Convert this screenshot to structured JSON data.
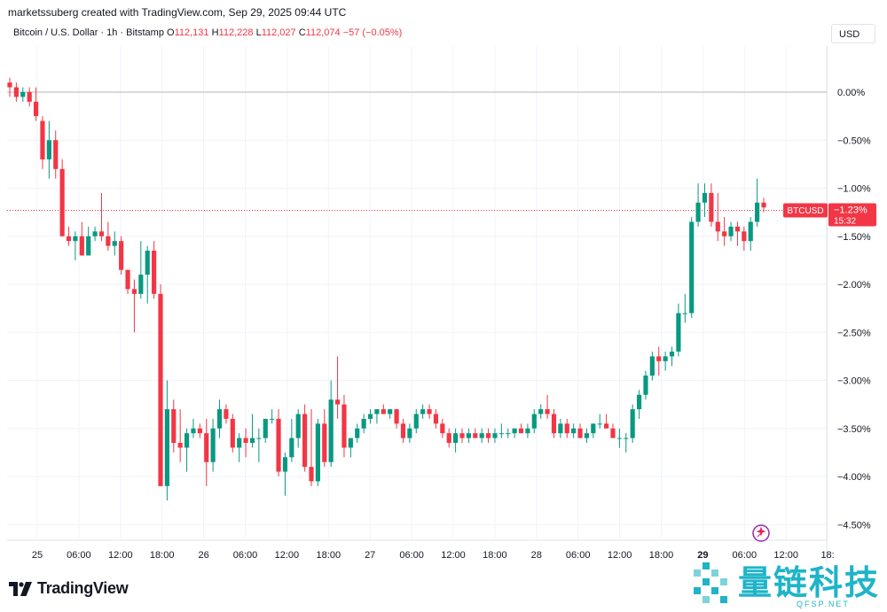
{
  "header": {
    "credit": "marketssuberg created with TradingView.com, Sep 29, 2025 09:44 UTC",
    "symbol": "Bitcoin / U.S. Dollar · 1h · Bitstamp",
    "open_label": "O",
    "open": "112,131",
    "high_label": "H",
    "high": "112,228",
    "low_label": "L",
    "low": "112,027",
    "close_label": "C",
    "close": "112,074",
    "change": "−57 (−0.05%)"
  },
  "currency_button": "USD",
  "price_tag": {
    "symbol": "BTCUSD",
    "value": "−1.23%",
    "countdown": "15:32"
  },
  "branding": {
    "logo_text": "TradingView"
  },
  "watermark": {
    "cn": "量链科技",
    "en": "QFSP.NET"
  },
  "colors": {
    "up": "#089981",
    "down": "#f23645",
    "grid": "#f0f3fa",
    "text": "#131722",
    "watermark": "#1fb4c8"
  },
  "icons": {
    "logo": "tradingview-logo-icon",
    "snapshot": "sparkle-icon"
  },
  "chart_data": {
    "type": "candlestick",
    "y_unit": "%",
    "ylim": [
      -4.6,
      0.2
    ],
    "yticks": [
      "0.00%",
      "−0.50%",
      "−1.00%",
      "−1.50%",
      "−2.00%",
      "−2.50%",
      "−3.00%",
      "−3.50%",
      "−4.00%",
      "−4.50%"
    ],
    "xticks": [
      "25",
      "06:00",
      "12:00",
      "18:00",
      "26",
      "06:00",
      "12:00",
      "18:00",
      "27",
      "06:00",
      "12:00",
      "18:00",
      "28",
      "06:00",
      "12:00",
      "18:00",
      "29",
      "06:00",
      "12:00",
      "18:"
    ],
    "baseline": 0.0,
    "last_value": -1.23,
    "grid": true,
    "candles": [
      [
        0.1,
        0.15,
        -0.05,
        0.05
      ],
      [
        0.05,
        0.1,
        -0.1,
        -0.05
      ],
      [
        -0.05,
        0.05,
        -0.1,
        0
      ],
      [
        0,
        0.05,
        -0.15,
        -0.1
      ],
      [
        -0.1,
        0.05,
        -0.3,
        -0.25
      ],
      [
        -0.3,
        -0.25,
        -0.8,
        -0.7
      ],
      [
        -0.7,
        -0.3,
        -0.9,
        -0.5
      ],
      [
        -0.5,
        -0.4,
        -0.9,
        -0.8
      ],
      [
        -0.8,
        -0.7,
        -1.5,
        -1.5
      ],
      [
        -1.5,
        -1.4,
        -1.6,
        -1.55
      ],
      [
        -1.55,
        -1.45,
        -1.75,
        -1.5
      ],
      [
        -1.5,
        -1.35,
        -1.7,
        -1.7
      ],
      [
        -1.7,
        -1.4,
        -1.7,
        -1.5
      ],
      [
        -1.5,
        -1.4,
        -1.55,
        -1.45
      ],
      [
        -1.45,
        -1.05,
        -1.55,
        -1.5
      ],
      [
        -1.5,
        -1.35,
        -1.65,
        -1.6
      ],
      [
        -1.6,
        -1.45,
        -1.7,
        -1.55
      ],
      [
        -1.55,
        -1.5,
        -1.9,
        -1.85
      ],
      [
        -1.85,
        -1.85,
        -2.1,
        -2.05
      ],
      [
        -2.05,
        -1.95,
        -2.5,
        -2.1
      ],
      [
        -2.1,
        -1.55,
        -2.15,
        -1.9
      ],
      [
        -1.9,
        -1.6,
        -2.2,
        -1.65
      ],
      [
        -1.65,
        -1.55,
        -2.15,
        -2.1
      ],
      [
        -2.1,
        -2.0,
        -4.1,
        -4.1
      ],
      [
        -4.1,
        -3.0,
        -4.25,
        -3.3
      ],
      [
        -3.3,
        -3.2,
        -3.75,
        -3.65
      ],
      [
        -3.65,
        -3.3,
        -3.85,
        -3.7
      ],
      [
        -3.7,
        -3.5,
        -3.95,
        -3.55
      ],
      [
        -3.55,
        -3.4,
        -3.6,
        -3.5
      ],
      [
        -3.5,
        -3.45,
        -3.6,
        -3.55
      ],
      [
        -3.55,
        -3.4,
        -4.1,
        -3.85
      ],
      [
        -3.85,
        -3.4,
        -3.95,
        -3.5
      ],
      [
        -3.5,
        -3.2,
        -3.6,
        -3.3
      ],
      [
        -3.3,
        -3.25,
        -3.45,
        -3.4
      ],
      [
        -3.4,
        -3.35,
        -3.75,
        -3.7
      ],
      [
        -3.7,
        -3.55,
        -3.85,
        -3.6
      ],
      [
        -3.6,
        -3.5,
        -3.8,
        -3.65
      ],
      [
        -3.65,
        -3.35,
        -3.7,
        -3.6
      ],
      [
        -3.6,
        -3.5,
        -3.85,
        -3.6
      ],
      [
        -3.6,
        -3.4,
        -3.65,
        -3.4
      ],
      [
        -3.4,
        -3.3,
        -3.45,
        -3.4
      ],
      [
        -3.4,
        -3.3,
        -4.0,
        -3.95
      ],
      [
        -3.95,
        -3.75,
        -4.2,
        -3.8
      ],
      [
        -3.8,
        -3.4,
        -3.85,
        -3.6
      ],
      [
        -3.6,
        -3.3,
        -3.7,
        -3.35
      ],
      [
        -3.35,
        -3.25,
        -3.95,
        -3.9
      ],
      [
        -3.9,
        -3.3,
        -4.1,
        -4.05
      ],
      [
        -4.05,
        -3.4,
        -4.1,
        -3.45
      ],
      [
        -3.45,
        -3.3,
        -3.9,
        -3.85
      ],
      [
        -3.85,
        -3.0,
        -3.9,
        -3.2
      ],
      [
        -3.2,
        -2.75,
        -3.4,
        -3.25
      ],
      [
        -3.25,
        -3.15,
        -3.8,
        -3.7
      ],
      [
        -3.7,
        -3.6,
        -3.8,
        -3.6
      ],
      [
        -3.6,
        -3.45,
        -3.65,
        -3.5
      ],
      [
        -3.5,
        -3.35,
        -3.55,
        -3.4
      ],
      [
        -3.4,
        -3.3,
        -3.45,
        -3.35
      ],
      [
        -3.35,
        -3.3,
        -3.45,
        -3.3
      ],
      [
        -3.3,
        -3.25,
        -3.35,
        -3.35
      ],
      [
        -3.35,
        -3.3,
        -3.4,
        -3.3
      ],
      [
        -3.3,
        -3.3,
        -3.5,
        -3.45
      ],
      [
        -3.45,
        -3.4,
        -3.65,
        -3.6
      ],
      [
        -3.6,
        -3.45,
        -3.65,
        -3.5
      ],
      [
        -3.5,
        -3.3,
        -3.55,
        -3.35
      ],
      [
        -3.35,
        -3.25,
        -3.4,
        -3.3
      ],
      [
        -3.3,
        -3.25,
        -3.4,
        -3.35
      ],
      [
        -3.35,
        -3.3,
        -3.5,
        -3.45
      ],
      [
        -3.45,
        -3.4,
        -3.6,
        -3.55
      ],
      [
        -3.55,
        -3.5,
        -3.7,
        -3.65
      ],
      [
        -3.65,
        -3.5,
        -3.75,
        -3.55
      ],
      [
        -3.55,
        -3.5,
        -3.65,
        -3.6
      ],
      [
        -3.6,
        -3.5,
        -3.65,
        -3.55
      ],
      [
        -3.55,
        -3.5,
        -3.6,
        -3.6
      ],
      [
        -3.6,
        -3.5,
        -3.65,
        -3.55
      ],
      [
        -3.55,
        -3.5,
        -3.65,
        -3.6
      ],
      [
        -3.6,
        -3.5,
        -3.65,
        -3.55
      ],
      [
        -3.55,
        -3.45,
        -3.6,
        -3.55
      ],
      [
        -3.55,
        -3.5,
        -3.6,
        -3.55
      ],
      [
        -3.55,
        -3.5,
        -3.6,
        -3.5
      ],
      [
        -3.5,
        -3.45,
        -3.55,
        -3.55
      ],
      [
        -3.55,
        -3.45,
        -3.6,
        -3.5
      ],
      [
        -3.5,
        -3.3,
        -3.55,
        -3.35
      ],
      [
        -3.35,
        -3.25,
        -3.4,
        -3.3
      ],
      [
        -3.3,
        -3.15,
        -3.4,
        -3.35
      ],
      [
        -3.35,
        -3.3,
        -3.6,
        -3.55
      ],
      [
        -3.55,
        -3.4,
        -3.6,
        -3.45
      ],
      [
        -3.45,
        -3.4,
        -3.6,
        -3.55
      ],
      [
        -3.55,
        -3.45,
        -3.6,
        -3.5
      ],
      [
        -3.5,
        -3.45,
        -3.6,
        -3.6
      ],
      [
        -3.6,
        -3.5,
        -3.65,
        -3.55
      ],
      [
        -3.55,
        -3.45,
        -3.6,
        -3.45
      ],
      [
        -3.45,
        -3.35,
        -3.5,
        -3.45
      ],
      [
        -3.45,
        -3.35,
        -3.5,
        -3.5
      ],
      [
        -3.5,
        -3.45,
        -3.6,
        -3.6
      ],
      [
        -3.6,
        -3.5,
        -3.7,
        -3.6
      ],
      [
        -3.6,
        -3.55,
        -3.75,
        -3.6
      ],
      [
        -3.6,
        -3.25,
        -3.65,
        -3.3
      ],
      [
        -3.3,
        -3.1,
        -3.4,
        -3.15
      ],
      [
        -3.15,
        -2.9,
        -3.2,
        -2.95
      ],
      [
        -2.95,
        -2.7,
        -3.0,
        -2.75
      ],
      [
        -2.75,
        -2.65,
        -2.95,
        -2.8
      ],
      [
        -2.8,
        -2.7,
        -2.9,
        -2.75
      ],
      [
        -2.75,
        -2.65,
        -2.85,
        -2.7
      ],
      [
        -2.7,
        -2.2,
        -2.75,
        -2.3
      ],
      [
        -2.3,
        -2.1,
        -2.4,
        -2.3
      ],
      [
        -2.3,
        -1.3,
        -2.35,
        -1.35
      ],
      [
        -1.35,
        -0.95,
        -1.4,
        -1.15
      ],
      [
        -1.15,
        -0.95,
        -1.3,
        -1.05
      ],
      [
        -1.05,
        -0.95,
        -1.4,
        -1.35
      ],
      [
        -1.35,
        -1.05,
        -1.55,
        -1.45
      ],
      [
        -1.45,
        -1.3,
        -1.6,
        -1.5
      ],
      [
        -1.5,
        -1.35,
        -1.55,
        -1.4
      ],
      [
        -1.4,
        -1.35,
        -1.6,
        -1.45
      ],
      [
        -1.45,
        -1.4,
        -1.65,
        -1.55
      ],
      [
        -1.55,
        -1.3,
        -1.65,
        -1.35
      ],
      [
        -1.35,
        -0.9,
        -1.4,
        -1.15
      ],
      [
        -1.15,
        -1.1,
        -1.25,
        -1.2
      ]
    ]
  }
}
